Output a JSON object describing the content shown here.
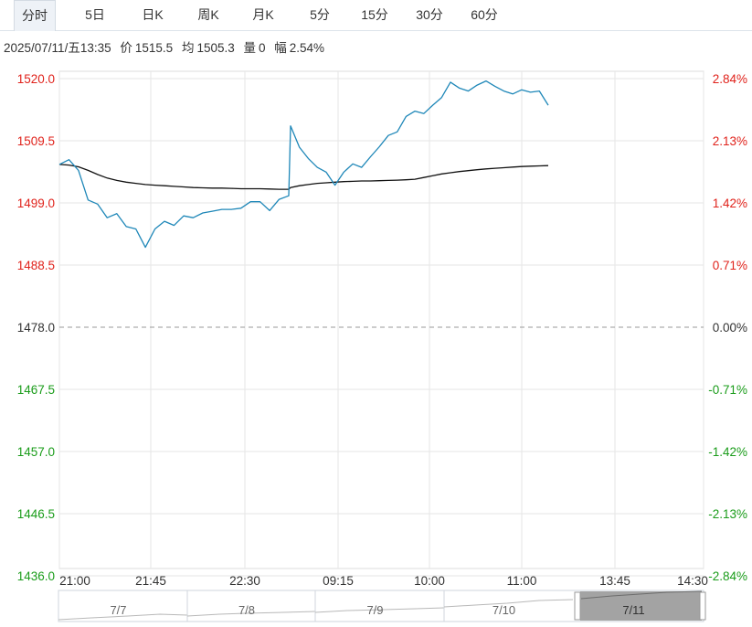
{
  "tabs": [
    {
      "label": "分时",
      "active": true
    },
    {
      "label": "5日",
      "active": false
    },
    {
      "label": "日K",
      "active": false
    },
    {
      "label": "周K",
      "active": false
    },
    {
      "label": "月K",
      "active": false
    },
    {
      "label": "5分",
      "active": false
    },
    {
      "label": "15分",
      "active": false
    },
    {
      "label": "30分",
      "active": false
    },
    {
      "label": "60分",
      "active": false
    }
  ],
  "info": {
    "datetime": "2025/07/11/五13:35",
    "price_label": "价",
    "price_value": "1515.5",
    "avg_label": "均",
    "avg_value": "1505.3",
    "volume_label": "量",
    "volume_value": "0",
    "amplitude_label": "幅",
    "amplitude_value": "2.54%"
  },
  "colors": {
    "up": "#e0221b",
    "down": "#1a9c1a",
    "price_line": "#1e87b8",
    "avg_line": "#111111",
    "grid": "#e6e6e6"
  },
  "chart_data": {
    "type": "line",
    "prev_close": 1478.0,
    "ylim": [
      1436.0,
      1520.0
    ],
    "y_ticks_left": [
      "1520.0",
      "1509.5",
      "1499.0",
      "1488.5",
      "1478.0",
      "1467.5",
      "1457.0",
      "1446.5",
      "1436.0"
    ],
    "y_ticks_right": [
      "2.84%",
      "2.13%",
      "1.42%",
      "0.71%",
      "0.00%",
      "-0.71%",
      "-1.42%",
      "-2.13%",
      "-2.84%"
    ],
    "x_ticks": [
      "21:00",
      "21:45",
      "22:30",
      "09:15",
      "10:00",
      "11:00",
      "13:45",
      "14:30"
    ],
    "x": [
      "21:00",
      "21:05",
      "21:10",
      "21:15",
      "21:20",
      "21:25",
      "21:30",
      "21:35",
      "21:40",
      "21:45",
      "21:50",
      "21:55",
      "22:00",
      "22:05",
      "22:10",
      "22:15",
      "22:20",
      "22:25",
      "22:30",
      "22:35",
      "22:40",
      "22:45",
      "22:50",
      "22:55",
      "23:00",
      "09:00",
      "09:05",
      "09:10",
      "09:15",
      "09:20",
      "09:25",
      "09:30",
      "09:35",
      "09:40",
      "09:45",
      "09:50",
      "09:55",
      "10:00",
      "10:05",
      "10:10",
      "10:15",
      "10:20",
      "10:25",
      "10:30",
      "10:35",
      "10:40",
      "10:45",
      "10:50",
      "10:55",
      "11:00",
      "11:05",
      "11:10",
      "11:15",
      "11:20",
      "11:25"
    ],
    "series": [
      {
        "values": [
          1505.5,
          1506.3,
          1504.5,
          1499.5,
          1498.8,
          1496.5,
          1497.2,
          1495.0,
          1494.6,
          1491.5,
          1494.6,
          1495.9,
          1495.2,
          1496.8,
          1496.5,
          1497.3,
          1497.6,
          1497.9,
          1497.9,
          1498.1,
          1499.2,
          1499.2,
          1497.7,
          1499.6,
          1500.2,
          1512.0,
          1508.4,
          1506.5,
          1505.0,
          1504.2,
          1502.0,
          1504.2,
          1505.6,
          1505.0,
          1506.8,
          1508.5,
          1510.4,
          1511.0,
          1513.6,
          1514.5,
          1514.1,
          1515.5,
          1516.8,
          1519.4,
          1518.4,
          1517.9,
          1518.9,
          1519.6,
          1518.7,
          1517.9,
          1517.4,
          1518.1,
          1517.7,
          1517.9,
          1515.5
        ]
      },
      {
        "values": [
          1505.5,
          1505.4,
          1505.1,
          1504.5,
          1503.8,
          1503.2,
          1502.8,
          1502.5,
          1502.3,
          1502.1,
          1502.0,
          1501.9,
          1501.8,
          1501.7,
          1501.6,
          1501.55,
          1501.5,
          1501.5,
          1501.45,
          1501.4,
          1501.4,
          1501.4,
          1501.35,
          1501.3,
          1501.3,
          1501.6,
          1501.9,
          1502.1,
          1502.3,
          1502.4,
          1502.5,
          1502.6,
          1502.65,
          1502.7,
          1502.7,
          1502.75,
          1502.8,
          1502.85,
          1502.9,
          1503.0,
          1503.3,
          1503.6,
          1503.9,
          1504.1,
          1504.3,
          1504.45,
          1504.6,
          1504.75,
          1504.85,
          1504.95,
          1505.05,
          1505.15,
          1505.2,
          1505.25,
          1505.3
        ]
      }
    ],
    "timeline": {
      "labels": [
        "7/7",
        "7/8",
        "7/9",
        "7/10",
        "7/11"
      ],
      "selected": "7/11"
    }
  }
}
